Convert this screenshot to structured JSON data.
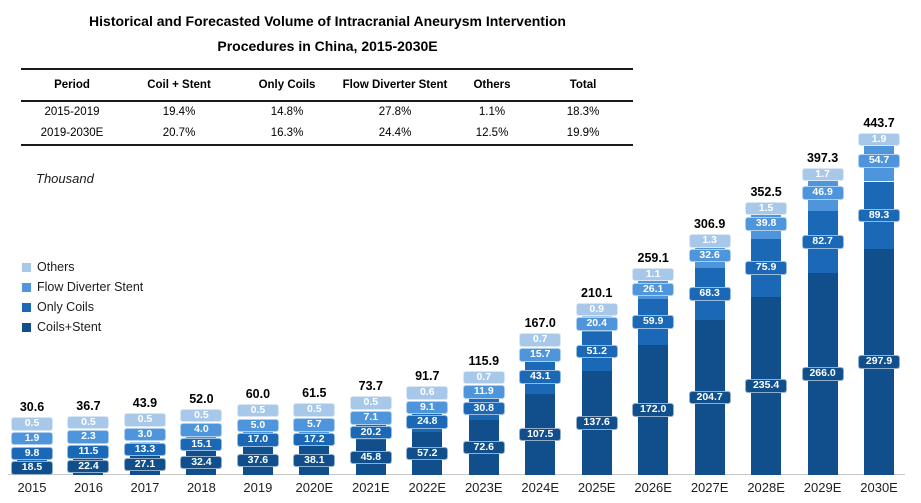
{
  "title": {
    "line1": "Historical and Forecasted Volume of Intracranial Aneurysm Intervention",
    "line2": "Procedures in China, 2015-2030E"
  },
  "table": {
    "headers": [
      "Period",
      "Coil + Stent",
      "Only Coils",
      "Flow Diverter Stent",
      "Others",
      "Total"
    ],
    "rows": [
      [
        "2015-2019",
        "19.4%",
        "14.8%",
        "27.8%",
        "1.1%",
        "18.3%"
      ],
      [
        "2019-2030E",
        "20.7%",
        "16.3%",
        "24.4%",
        "12.5%",
        "19.9%"
      ]
    ]
  },
  "chart_data": {
    "type": "bar",
    "stacked": true,
    "title": "Historical and Forecasted Volume of Intracranial Aneurysm Intervention Procedures in China, 2015-2030E",
    "unit_label": "Thousand",
    "legend_position": "left",
    "legend_order_top_to_bottom": [
      "Others",
      "Flow Diverter Stent",
      "Only Coils",
      "Coils+Stent"
    ],
    "categories": [
      "2015",
      "2016",
      "2017",
      "2018",
      "2019",
      "2020E",
      "2021E",
      "2022E",
      "2023E",
      "2024E",
      "2025E",
      "2026E",
      "2027E",
      "2028E",
      "2029E",
      "2030E"
    ],
    "series": [
      {
        "key": "coils_stent",
        "name": "Coils+Stent",
        "color": "#104F8C",
        "values": [
          18.5,
          22.4,
          27.1,
          32.4,
          37.6,
          38.1,
          45.8,
          57.2,
          72.6,
          107.5,
          137.6,
          172.0,
          204.7,
          235.4,
          266.0,
          297.9
        ]
      },
      {
        "key": "only_coils",
        "name": "Only Coils",
        "color": "#1A68B6",
        "values": [
          9.8,
          11.5,
          13.3,
          15.1,
          17.0,
          17.2,
          20.2,
          24.8,
          30.8,
          43.1,
          51.2,
          59.9,
          68.3,
          75.9,
          82.7,
          89.3
        ]
      },
      {
        "key": "flow_diverter_stent",
        "name": "Flow Diverter Stent",
        "color": "#4E95DC",
        "values": [
          1.9,
          2.3,
          3.0,
          4.0,
          5.0,
          5.7,
          7.1,
          9.1,
          11.9,
          15.7,
          20.4,
          26.1,
          32.6,
          39.8,
          46.9,
          54.7
        ]
      },
      {
        "key": "others",
        "name": "Others",
        "color": "#A8C8EA",
        "values": [
          0.5,
          0.5,
          0.5,
          0.5,
          0.5,
          0.5,
          0.5,
          0.6,
          0.7,
          0.7,
          0.9,
          1.1,
          1.3,
          1.5,
          1.7,
          1.9
        ]
      }
    ],
    "totals": [
      30.6,
      36.7,
      43.9,
      52.0,
      60.0,
      61.5,
      73.7,
      91.7,
      115.9,
      167.0,
      210.1,
      259.1,
      306.9,
      352.5,
      397.3,
      443.7
    ]
  }
}
